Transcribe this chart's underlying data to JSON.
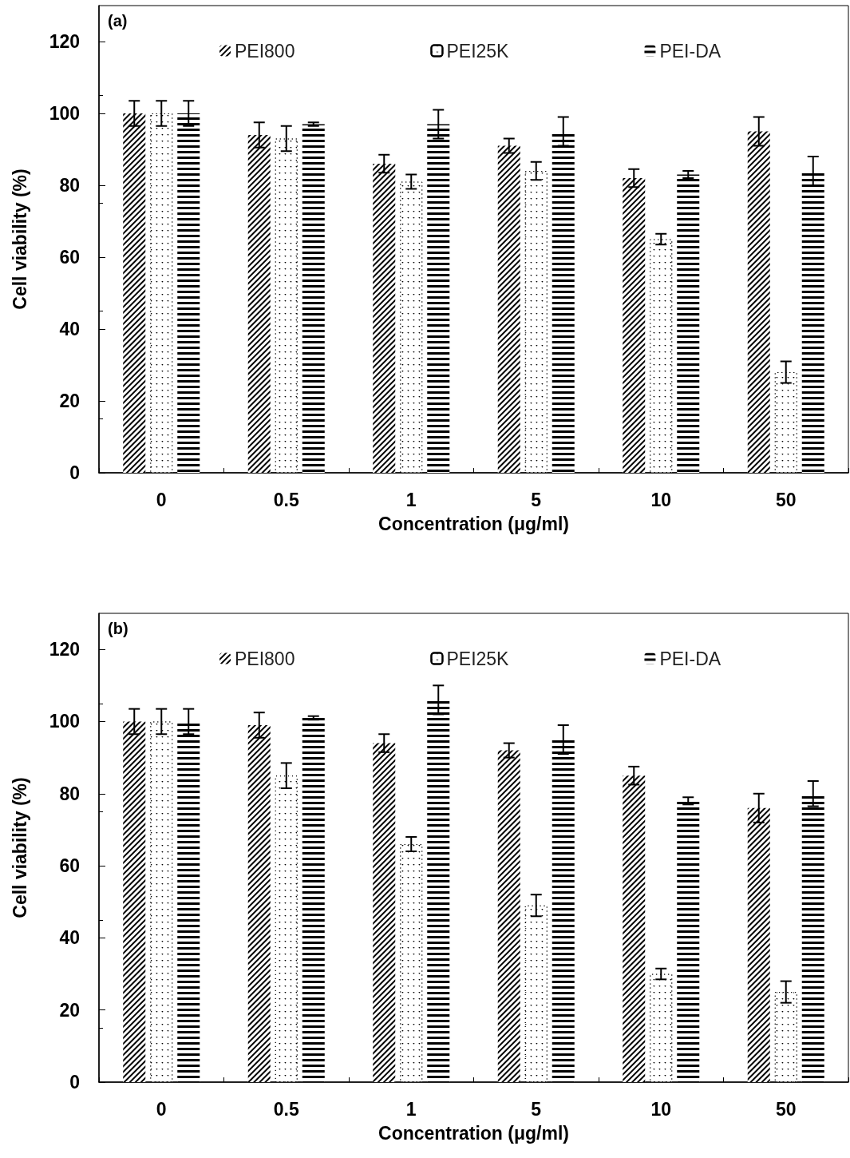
{
  "chart_data": [
    {
      "type": "bar",
      "title": "(a)",
      "xlabel": "Concentration (μg/ml)",
      "ylabel": "Cell viability (%)",
      "categories": [
        "0",
        "0.5",
        "1",
        "5",
        "10",
        "50"
      ],
      "series": [
        {
          "name": "PEI800",
          "color": "#000000",
          "values": [
            100,
            94,
            86,
            91,
            82,
            95
          ],
          "errors": [
            3.5,
            3.5,
            2.5,
            2,
            2.5,
            4
          ]
        },
        {
          "name": "PEI25K",
          "color": "#000000",
          "values": [
            100,
            93,
            81,
            84,
            65,
            28
          ],
          "errors": [
            3.5,
            3.5,
            2,
            2.5,
            1.5,
            3
          ]
        },
        {
          "name": "PEI-DA",
          "color": "#000000",
          "values": [
            100,
            97,
            97,
            95,
            83,
            84
          ],
          "errors": [
            3.5,
            0.5,
            4,
            4,
            1,
            4
          ]
        }
      ],
      "ylim": [
        0,
        130
      ],
      "yticks": [
        0,
        20,
        40,
        60,
        80,
        100,
        120
      ],
      "grid": false,
      "legend": "top"
    },
    {
      "type": "bar",
      "title": "(b)",
      "xlabel": "Concentration (μg/ml)",
      "ylabel": "Cell viability (%)",
      "categories": [
        "0",
        "0.5",
        "1",
        "5",
        "10",
        "50"
      ],
      "series": [
        {
          "name": "PEI800",
          "color": "#000000",
          "values": [
            100,
            99,
            94,
            92,
            85,
            76
          ],
          "errors": [
            3.5,
            3.5,
            2.5,
            2,
            2.5,
            4
          ]
        },
        {
          "name": "PEI25K",
          "color": "#000000",
          "values": [
            100,
            85,
            66,
            49,
            30,
            25
          ],
          "errors": [
            3.5,
            3.5,
            2,
            3,
            1.5,
            3
          ]
        },
        {
          "name": "PEI-DA",
          "color": "#000000",
          "values": [
            100,
            101,
            106,
            95,
            78,
            80
          ],
          "errors": [
            3.5,
            0.5,
            4,
            4,
            1,
            3.5
          ]
        }
      ],
      "ylim": [
        0,
        130
      ],
      "yticks": [
        0,
        20,
        40,
        60,
        80,
        100,
        120
      ],
      "grid": false,
      "legend": "top"
    }
  ]
}
